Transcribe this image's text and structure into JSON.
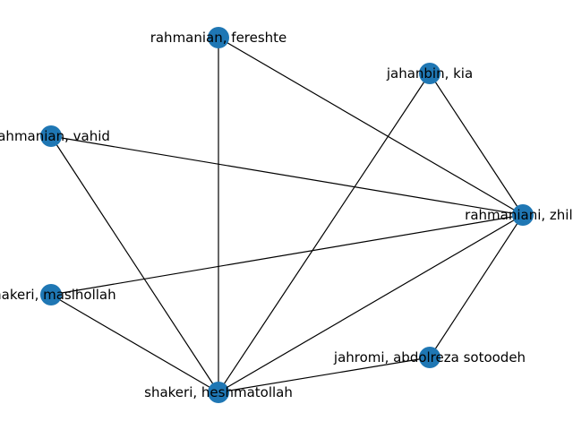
{
  "graph": {
    "node_color": "#1f77b4",
    "edge_color": "#000000",
    "nodes": [
      {
        "id": "fereshte",
        "label": "rahmanian, fereshte"
      },
      {
        "id": "kia",
        "label": "jahanbin, kia"
      },
      {
        "id": "vahid",
        "label": "rahmanian, vahid"
      },
      {
        "id": "zhila",
        "label": "rahmaniani, zhila"
      },
      {
        "id": "masihollah",
        "label": "shakeri, masihollah"
      },
      {
        "id": "abdolreza",
        "label": "jahromi, abdolreza sotoodeh"
      },
      {
        "id": "heshmatollah",
        "label": "shakeri, heshmatollah"
      }
    ],
    "edges": [
      [
        "fereshte",
        "zhila"
      ],
      [
        "fereshte",
        "heshmatollah"
      ],
      [
        "kia",
        "zhila"
      ],
      [
        "kia",
        "heshmatollah"
      ],
      [
        "vahid",
        "zhila"
      ],
      [
        "vahid",
        "heshmatollah"
      ],
      [
        "masihollah",
        "zhila"
      ],
      [
        "masihollah",
        "heshmatollah"
      ],
      [
        "zhila",
        "abdolreza"
      ],
      [
        "zhila",
        "heshmatollah"
      ],
      [
        "abdolreza",
        "heshmatollah"
      ]
    ]
  }
}
